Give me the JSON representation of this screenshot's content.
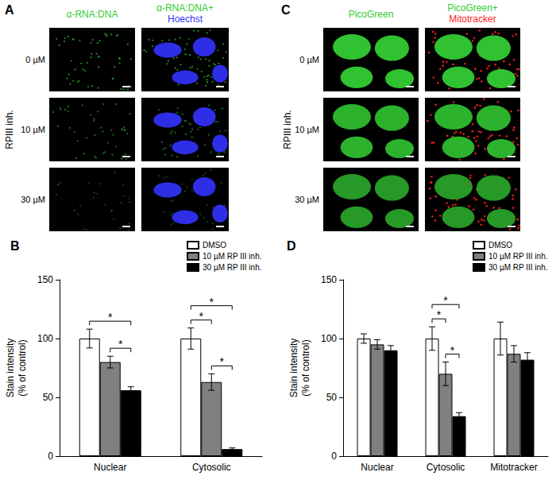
{
  "figure_panels": [
    {
      "label": "A",
      "columns": [
        [
          {
            "text": "α-RNA:DNA",
            "color": "#33cc33"
          }
        ],
        [
          {
            "text": "α-RNA:DNA+",
            "color": "#33cc33"
          },
          {
            "text": "Hoechst",
            "color": "#3333ff"
          }
        ]
      ],
      "rows": [
        "0 µM",
        "10 µM",
        "30 µM"
      ],
      "row_title": "RPIII inh."
    },
    {
      "label": "C",
      "columns": [
        [
          {
            "text": "PicoGreen",
            "color": "#33cc33"
          }
        ],
        [
          {
            "text": "PicoGreen+",
            "color": "#33cc33"
          },
          {
            "text": "Mitotracker",
            "color": "#ff2222"
          }
        ]
      ],
      "rows": [
        "0 µM",
        "10 µM",
        "30 µM"
      ],
      "row_title": "RPIII inh."
    }
  ],
  "chart_data": [
    {
      "type": "bar",
      "title": "B",
      "y_label": "Stain intensity\n(% of control)",
      "categories": [
        "Nuclear",
        "Cytosolic"
      ],
      "series": [
        {
          "name": "DMSO",
          "color": "#ffffff",
          "values": [
            100,
            100
          ],
          "errors": [
            8,
            9
          ]
        },
        {
          "name": "10 µM RP III inh.",
          "color": "#808080",
          "values": [
            80,
            63
          ],
          "errors": [
            5,
            7
          ]
        },
        {
          "name": "30 µM RP III inh.",
          "color": "#000000",
          "values": [
            56,
            6
          ],
          "errors": [
            3,
            1
          ]
        }
      ],
      "significance": [
        {
          "category": "Nuclear",
          "between": [
            "DMSO",
            "30 µM RP III inh."
          ],
          "label": "*"
        },
        {
          "category": "Nuclear",
          "between": [
            "10 µM RP III inh.",
            "30 µM RP III inh."
          ],
          "label": "*"
        },
        {
          "category": "Cytosolic",
          "between": [
            "DMSO",
            "10 µM RP III inh."
          ],
          "label": "*"
        },
        {
          "category": "Cytosolic",
          "between": [
            "DMSO",
            "30 µM RP III inh."
          ],
          "label": "*"
        },
        {
          "category": "Cytosolic",
          "between": [
            "10 µM RP III inh.",
            "30 µM RP III inh."
          ],
          "label": "*"
        }
      ],
      "ylim": [
        0,
        150
      ],
      "yticks": [
        0,
        50,
        100,
        150
      ],
      "grid": false,
      "legend": "upper right"
    },
    {
      "type": "bar",
      "title": "D",
      "y_label": "Stain intensity\n(% of control)",
      "categories": [
        "Nuclear",
        "Cytosolic",
        "Mitotracker"
      ],
      "series": [
        {
          "name": "DMSO",
          "color": "#ffffff",
          "values": [
            100,
            100,
            100
          ],
          "errors": [
            4,
            10,
            14
          ]
        },
        {
          "name": "10 µM RP III inh.",
          "color": "#808080",
          "values": [
            95,
            70,
            87
          ],
          "errors": [
            4,
            10,
            7
          ]
        },
        {
          "name": "30 µM RP III inh.",
          "color": "#000000",
          "values": [
            90,
            34,
            82
          ],
          "errors": [
            4,
            3,
            6
          ]
        }
      ],
      "significance": [
        {
          "category": "Cytosolic",
          "between": [
            "DMSO",
            "10 µM RP III inh."
          ],
          "label": "*"
        },
        {
          "category": "Cytosolic",
          "between": [
            "DMSO",
            "30 µM RP III inh."
          ],
          "label": "*"
        },
        {
          "category": "Cytosolic",
          "between": [
            "10 µM RP III inh.",
            "30 µM RP III inh."
          ],
          "label": "*"
        }
      ],
      "ylim": [
        0,
        150
      ],
      "yticks": [
        0,
        50,
        100,
        150
      ],
      "grid": false,
      "legend": "upper right"
    }
  ]
}
